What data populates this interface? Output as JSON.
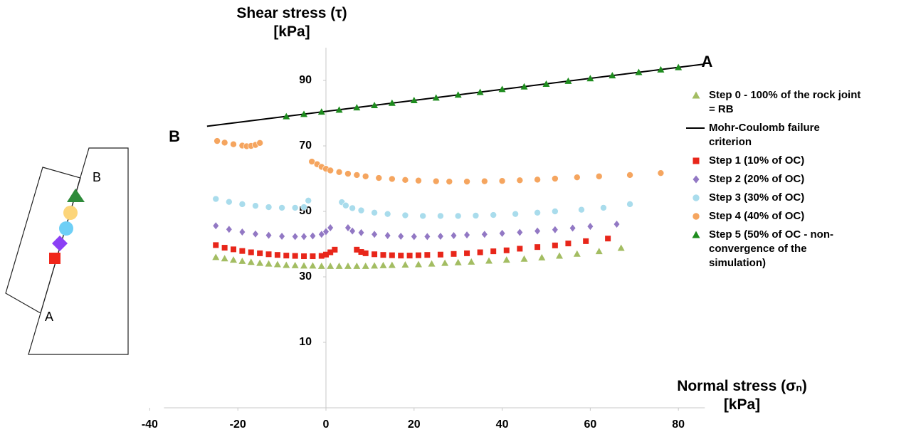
{
  "chart_data": {
    "type": "scatter",
    "xlabel": "Normal stress (σₙ) [kPa]",
    "ylabel": "Shear stress (τ) [kPa]",
    "xlim": [
      -40,
      86
    ],
    "ylim": [
      -10,
      100
    ],
    "xticks": [
      -40,
      -20,
      0,
      20,
      40,
      60,
      80
    ],
    "yticks": [
      10,
      30,
      50,
      70,
      90
    ],
    "legend": "right",
    "annotations": [
      {
        "text": "A",
        "x": 86.5,
        "y": 95.4
      },
      {
        "text": "B",
        "x": -34.4,
        "y": 72.6
      }
    ],
    "series": [
      {
        "name": "Step 0 - 100% of the rock joint = RB",
        "color": "#a3bd62",
        "marker": "triangle",
        "x": [
          -25,
          -23,
          -21,
          -19,
          -17,
          -15,
          -13,
          -11,
          -9,
          -7,
          -5,
          -3,
          -1,
          1,
          3,
          5,
          7,
          9,
          11,
          13,
          15,
          18,
          21,
          24,
          27,
          30,
          33,
          37,
          41,
          45,
          49,
          53,
          57,
          62,
          67
        ],
        "values": [
          36,
          35.6,
          35.2,
          34.8,
          34.5,
          34.2,
          34,
          33.8,
          33.6,
          33.5,
          33.4,
          33.4,
          33.3,
          33.3,
          33.3,
          33.3,
          33.3,
          33.3,
          33.4,
          33.5,
          33.6,
          33.7,
          33.8,
          34,
          34.2,
          34.4,
          34.6,
          34.9,
          35.2,
          35.5,
          35.9,
          36.4,
          37,
          37.8,
          38.8
        ]
      },
      {
        "name": "Mohr-Coulomb failure criterion",
        "color": "#000000",
        "marker": "line",
        "x": [
          -27,
          86
        ],
        "values": [
          76,
          95
        ]
      },
      {
        "name": "Step 1 (10% of OC)",
        "color": "#e8261a",
        "marker": "square",
        "x": [
          -25,
          -23,
          -21,
          -19,
          -17,
          -15,
          -13,
          -11,
          -9,
          -7,
          -5,
          -3,
          -1,
          0,
          1,
          2,
          7,
          8,
          9,
          11,
          13,
          15,
          17,
          19,
          21,
          23,
          26,
          29,
          32,
          35,
          38,
          41,
          44,
          48,
          52,
          55,
          59,
          64
        ],
        "values": [
          39.7,
          38.9,
          38.4,
          37.9,
          37.5,
          37.2,
          36.9,
          36.7,
          36.5,
          36.4,
          36.3,
          36.3,
          36.4,
          36.8,
          37.5,
          38.3,
          38.3,
          37.6,
          37.2,
          36.9,
          36.7,
          36.6,
          36.5,
          36.5,
          36.6,
          36.7,
          36.8,
          37,
          37.2,
          37.5,
          37.8,
          38.1,
          38.6,
          39.1,
          39.6,
          40.2,
          40.9,
          41.7
        ]
      },
      {
        "name": "Step 2 (20% of OC)",
        "color": "#9278c4",
        "marker": "diamond",
        "x": [
          -25,
          -22,
          -19,
          -16,
          -13,
          -10,
          -7,
          -5,
          -3,
          -1,
          0,
          1,
          5,
          6,
          8,
          11,
          14,
          17,
          20,
          23,
          26,
          29,
          32,
          36,
          40,
          44,
          48,
          52,
          56,
          60,
          66
        ],
        "values": [
          45.6,
          44.5,
          43.7,
          43.1,
          42.7,
          42.4,
          42.3,
          42.3,
          42.5,
          43,
          43.8,
          45,
          45,
          44,
          43.5,
          43,
          42.6,
          42.4,
          42.3,
          42.3,
          42.4,
          42.6,
          42.8,
          43,
          43.3,
          43.6,
          44,
          44.4,
          44.9,
          45.4,
          46.1
        ]
      },
      {
        "name": "Step 3 (30% of OC)",
        "color": "#a9dcec",
        "marker": "circle",
        "x": [
          -25,
          -22,
          -19,
          -16,
          -13,
          -10,
          -7,
          -5,
          -4,
          3.6,
          4.5,
          6,
          8,
          11,
          14,
          18,
          22,
          26,
          30,
          34,
          38,
          43,
          48,
          52,
          58,
          63,
          69
        ],
        "values": [
          53.8,
          52.9,
          52.2,
          51.7,
          51.3,
          51.1,
          51.1,
          51.3,
          53.3,
          52.8,
          51.8,
          51,
          50.3,
          49.6,
          49.2,
          48.8,
          48.6,
          48.6,
          48.6,
          48.7,
          48.9,
          49.2,
          49.6,
          50,
          50.5,
          51.1,
          52.2
        ]
      },
      {
        "name": "Step 4 (40% of OC)",
        "color": "#f5a55f",
        "marker": "circle",
        "x": [
          -24.7,
          -23,
          -21,
          -19,
          -18,
          -17,
          -16,
          -15,
          -3.2,
          -2,
          -1,
          0,
          1,
          3,
          5,
          7,
          9,
          12,
          15,
          18,
          21,
          25,
          28,
          32,
          36,
          40,
          44,
          48,
          52,
          57,
          62,
          69,
          76
        ],
        "values": [
          71.5,
          71,
          70.5,
          70.1,
          69.9,
          70,
          70.3,
          70.9,
          65.2,
          64.4,
          63.6,
          63,
          62.5,
          62,
          61.5,
          61.1,
          60.7,
          60.2,
          59.9,
          59.6,
          59.4,
          59.2,
          59.1,
          59.1,
          59.2,
          59.3,
          59.5,
          59.7,
          60,
          60.4,
          60.7,
          61.1,
          61.7
        ]
      },
      {
        "name": "Step 5 (50% of OC - non-convergence of the simulation)",
        "color": "#1e8c1e",
        "marker": "triangle",
        "x": [
          -9,
          -5,
          -1,
          3,
          7,
          11,
          15,
          20,
          25,
          30,
          35,
          40,
          45,
          50,
          55,
          60,
          65,
          71,
          76,
          80
        ],
        "values": [
          79,
          79.7,
          80.4,
          81,
          81.7,
          82.4,
          83.1,
          83.9,
          84.7,
          85.6,
          86.4,
          87.3,
          88.1,
          88.9,
          89.8,
          90.6,
          91.5,
          92.5,
          93.3,
          94
        ]
      }
    ]
  },
  "diagram": {
    "labels": {
      "top": "B",
      "bottom": "A"
    }
  }
}
